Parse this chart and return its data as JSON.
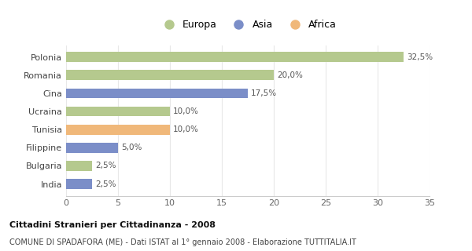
{
  "categories": [
    "Polonia",
    "Romania",
    "Cina",
    "Ucraina",
    "Tunisia",
    "Filippine",
    "Bulgaria",
    "India"
  ],
  "values": [
    32.5,
    20.0,
    17.5,
    10.0,
    10.0,
    5.0,
    2.5,
    2.5
  ],
  "bar_colors": [
    "#b5c98e",
    "#b5c98e",
    "#7b8ec8",
    "#b5c98e",
    "#f0b87a",
    "#7b8ec8",
    "#b5c98e",
    "#7b8ec8"
  ],
  "labels": [
    "32,5%",
    "20,0%",
    "17,5%",
    "10,0%",
    "10,0%",
    "5,0%",
    "2,5%",
    "2,5%"
  ],
  "legend_labels": [
    "Europa",
    "Asia",
    "Africa"
  ],
  "legend_colors": [
    "#b5c98e",
    "#7b8ec8",
    "#f0b87a"
  ],
  "xlim": [
    0,
    35
  ],
  "xticks": [
    0,
    5,
    10,
    15,
    20,
    25,
    30,
    35
  ],
  "title_bold": "Cittadini Stranieri per Cittadinanza - 2008",
  "subtitle": "COMUNE DI SPADAFORA (ME) - Dati ISTAT al 1° gennaio 2008 - Elaborazione TUTTITALIA.IT",
  "background_color": "#ffffff",
  "bar_height": 0.55,
  "grid_color": "#e8e8e8",
  "label_fontsize": 7.5,
  "ytick_fontsize": 8,
  "xtick_fontsize": 8
}
